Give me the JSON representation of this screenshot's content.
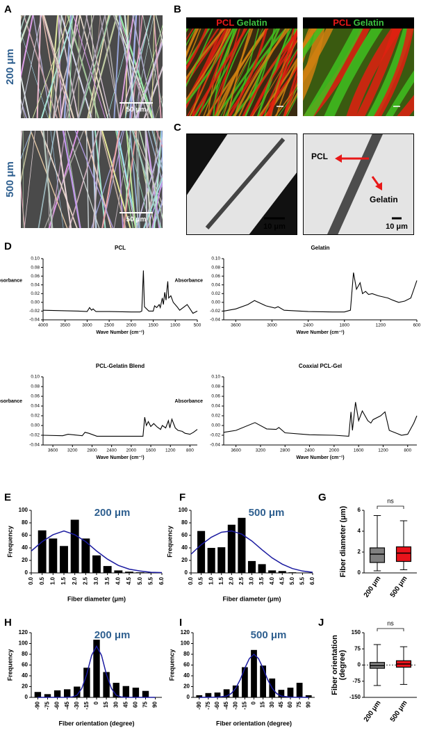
{
  "panel_labels": [
    "A",
    "B",
    "C",
    "D",
    "E",
    "F",
    "G",
    "H",
    "I",
    "J"
  ],
  "sem": {
    "rows": [
      "200 μm",
      "500 μm"
    ],
    "scale_bar": "50 μm"
  },
  "fluorescence": {
    "channels": [
      "PCL",
      "Gelatin"
    ]
  },
  "tem": {
    "scale_bar": "10 μm",
    "arrows": [
      "PCL",
      "Gelatin"
    ]
  },
  "chart_data": [
    {
      "type": "line",
      "title": "PCL",
      "xlabel": "Wave Number (cm⁻¹)",
      "ylabel": "Absorbance",
      "color": "#000000",
      "xlim": [
        4000,
        500
      ],
      "xticks": [
        4000,
        3500,
        3000,
        2500,
        2000,
        1500,
        1000,
        500
      ],
      "ylim": [
        -0.04,
        0.1
      ],
      "yticks": [
        -0.04,
        -0.02,
        {
          "value": 0,
          "label": "0.00"
        },
        0.02,
        0.04,
        0.06,
        0.08,
        {
          "value": 0.1,
          "label": "0.10"
        }
      ],
      "x": [
        4000,
        3600,
        3200,
        3000,
        2945,
        2900,
        2865,
        2800,
        2500,
        2000,
        1800,
        1760,
        1724,
        1700,
        1600,
        1500,
        1470,
        1420,
        1365,
        1340,
        1295,
        1270,
        1240,
        1210,
        1190,
        1170,
        1150,
        1100,
        1045,
        960,
        900,
        730,
        600,
        500
      ],
      "values": [
        -0.018,
        -0.019,
        -0.02,
        -0.021,
        -0.012,
        -0.018,
        -0.015,
        -0.021,
        -0.021,
        -0.022,
        -0.022,
        -0.02,
        0.073,
        -0.01,
        -0.02,
        -0.02,
        -0.008,
        -0.012,
        -0.005,
        -0.012,
        0.01,
        -0.005,
        0.023,
        0.005,
        0.028,
        0.048,
        0.01,
        0.015,
        0.0,
        -0.01,
        -0.018,
        -0.005,
        -0.025,
        -0.02
      ]
    },
    {
      "type": "line",
      "title": "Gelatin",
      "xlabel": "Wave Number (cm⁻¹)",
      "ylabel": "Absorbance",
      "color": "#000000",
      "xlim": [
        3800,
        600
      ],
      "xticks": [
        3600,
        3000,
        2400,
        1800,
        1200,
        600
      ],
      "ylim": [
        -0.04,
        0.1
      ],
      "yticks": [
        -0.04,
        -0.02,
        {
          "value": 0,
          "label": "0.00"
        },
        0.02,
        0.04,
        0.06,
        0.08,
        {
          "value": 0.1,
          "label": "0.10"
        }
      ],
      "x": [
        3800,
        3600,
        3400,
        3290,
        3100,
        2950,
        2900,
        2800,
        2400,
        2000,
        1800,
        1700,
        1650,
        1600,
        1540,
        1500,
        1450,
        1400,
        1340,
        1240,
        1080,
        1000,
        900,
        800,
        700,
        650,
        600
      ],
      "values": [
        -0.02,
        -0.015,
        -0.005,
        0.004,
        -0.008,
        -0.013,
        -0.01,
        -0.018,
        -0.021,
        -0.022,
        -0.022,
        -0.018,
        0.068,
        0.03,
        0.045,
        0.02,
        0.025,
        0.018,
        0.02,
        0.015,
        0.01,
        0.005,
        0.0,
        0.003,
        0.01,
        0.03,
        0.05
      ]
    },
    {
      "type": "line",
      "title": "PCL-Gelatin Blend",
      "xlabel": "Wave Number (cm⁻¹)",
      "ylabel": "Absorbance",
      "color": "#000000",
      "xlim": [
        3800,
        650
      ],
      "xticks": [
        3600,
        3200,
        2800,
        2400,
        2000,
        1600,
        1200,
        800
      ],
      "ylim": [
        -0.04,
        0.1
      ],
      "yticks": [
        -0.04,
        -0.02,
        {
          "value": 0,
          "label": "0.00"
        },
        0.02,
        0.04,
        0.06,
        0.08,
        {
          "value": 0.1,
          "label": "0.10"
        }
      ],
      "x": [
        3800,
        3400,
        3290,
        3000,
        2945,
        2865,
        2700,
        2000,
        1760,
        1724,
        1690,
        1650,
        1600,
        1540,
        1470,
        1400,
        1365,
        1295,
        1240,
        1210,
        1170,
        1100,
        1045,
        960,
        900,
        800,
        730,
        650
      ],
      "values": [
        -0.02,
        -0.021,
        -0.018,
        -0.021,
        -0.014,
        -0.016,
        -0.022,
        -0.022,
        -0.022,
        0.017,
        0.0,
        0.008,
        -0.002,
        0.004,
        -0.003,
        -0.008,
        0.0,
        -0.005,
        0.01,
        -0.005,
        0.013,
        -0.005,
        -0.01,
        -0.012,
        -0.016,
        -0.018,
        -0.014,
        -0.008
      ]
    },
    {
      "type": "line",
      "title": "Coaxial PCL-Gel",
      "xlabel": "Wave Number (cm⁻¹)",
      "ylabel": "Absorbance",
      "color": "#000000",
      "xlim": [
        3800,
        650
      ],
      "xticks": [
        3600,
        3200,
        2800,
        2400,
        2000,
        1600,
        1200,
        800
      ],
      "ylim": [
        -0.04,
        0.1
      ],
      "yticks": [
        -0.04,
        -0.02,
        {
          "value": 0,
          "label": "0.00"
        },
        0.02,
        0.04,
        0.06,
        0.08,
        {
          "value": 0.1,
          "label": "0.10"
        }
      ],
      "x": [
        3800,
        3600,
        3290,
        3100,
        2945,
        2900,
        2800,
        2400,
        2000,
        1760,
        1724,
        1700,
        1650,
        1600,
        1540,
        1450,
        1400,
        1365,
        1240,
        1170,
        1100,
        1000,
        900,
        800,
        700,
        650
      ],
      "values": [
        -0.014,
        -0.01,
        0.006,
        -0.007,
        -0.008,
        -0.004,
        -0.015,
        -0.019,
        -0.02,
        -0.022,
        0.028,
        -0.01,
        0.048,
        0.01,
        0.03,
        0.01,
        0.005,
        0.012,
        0.02,
        0.028,
        -0.01,
        -0.015,
        -0.02,
        -0.018,
        0.005,
        0.02
      ]
    },
    {
      "type": "bar",
      "title": "200 μm",
      "xlabel": "Fiber diameter (μm)",
      "ylabel": "Frequency",
      "color": "#000000",
      "xlim": [
        0,
        6
      ],
      "xticks": [
        {
          "value": 0,
          "label": "0.0"
        },
        0.5,
        {
          "value": 1,
          "label": "1.0"
        },
        1.5,
        {
          "value": 2,
          "label": "2.0"
        },
        2.5,
        {
          "value": 3,
          "label": "3.0"
        },
        3.5,
        {
          "value": 4,
          "label": "4.0"
        },
        4.5,
        {
          "value": 5,
          "label": "5.0"
        },
        5.5,
        {
          "value": 6,
          "label": "6.0"
        }
      ],
      "ylim": [
        0,
        100
      ],
      "yticks": [
        0,
        20,
        40,
        60,
        80,
        100
      ],
      "x": [
        0.5,
        1,
        1.5,
        2,
        2.5,
        3,
        3.5,
        4,
        4.5,
        5
      ],
      "values": [
        68,
        55,
        43,
        85,
        55,
        28,
        11,
        4,
        2,
        1
      ],
      "fit": {
        "color": "#1a1aa0",
        "x": [
          0,
          0.5,
          1,
          1.5,
          2,
          2.5,
          3,
          3.5,
          4,
          4.5,
          5,
          5.5,
          6
        ],
        "values": [
          35,
          50,
          61,
          67,
          61,
          50,
          35,
          22,
          12,
          6,
          3,
          1,
          0.5
        ]
      }
    },
    {
      "type": "bar",
      "title": "500 μm",
      "xlabel": "Fiber diameter (μm)",
      "ylabel": "Frequency",
      "color": "#000000",
      "xlim": [
        0,
        6
      ],
      "xticks": [
        {
          "value": 0,
          "label": "0.0"
        },
        0.5,
        {
          "value": 1,
          "label": "1.0"
        },
        1.5,
        {
          "value": 2,
          "label": "2.0"
        },
        2.5,
        {
          "value": 3,
          "label": "3.0"
        },
        3.5,
        {
          "value": 4,
          "label": "4.0"
        },
        4.5,
        {
          "value": 5,
          "label": "5.0"
        },
        5.5,
        {
          "value": 6,
          "label": "6.0"
        }
      ],
      "ylim": [
        0,
        100
      ],
      "yticks": [
        0,
        20,
        40,
        60,
        80,
        100
      ],
      "x": [
        0.5,
        1,
        1.5,
        2,
        2.5,
        3,
        3.5,
        4,
        4.5,
        5
      ],
      "values": [
        67,
        40,
        41,
        77,
        88,
        19,
        14,
        4,
        3,
        1
      ],
      "fit": {
        "color": "#1a1aa0",
        "x": [
          0,
          0.5,
          1,
          1.5,
          2,
          2.5,
          3,
          3.5,
          4,
          4.5,
          5,
          5.5,
          6
        ],
        "values": [
          30,
          45,
          57,
          65,
          67,
          62,
          51,
          37,
          24,
          14,
          7,
          3,
          1
        ]
      }
    },
    {
      "type": "box",
      "ylabel": "Fiber diameter (μm)",
      "annotation": "ns",
      "categories": [
        "200 μm",
        "500 μm"
      ],
      "ylim": [
        0,
        6
      ],
      "yticks": [
        0,
        2,
        4,
        6
      ],
      "boxes": [
        {
          "min": 0.2,
          "q1": 1.0,
          "median": 1.8,
          "q3": 2.4,
          "max": 5.5,
          "color": "#808080"
        },
        {
          "min": 0.3,
          "q1": 1.1,
          "median": 1.9,
          "q3": 2.5,
          "max": 5.0,
          "color": "#e8131b"
        }
      ]
    },
    {
      "type": "bar",
      "title": "200 μm",
      "xlabel": "Fiber orientation (degree)",
      "ylabel": "Frequency",
      "color": "#000000",
      "xlim": [
        -100,
        100
      ],
      "xticks": [
        -90,
        -75,
        -60,
        -45,
        -30,
        -15,
        0,
        15,
        30,
        45,
        60,
        75,
        90
      ],
      "ylim": [
        0,
        120
      ],
      "yticks": [
        0,
        20,
        40,
        60,
        80,
        100,
        120
      ],
      "x": [
        -90,
        -75,
        -60,
        -45,
        -30,
        -15,
        0,
        15,
        30,
        45,
        60,
        75
      ],
      "values": [
        10,
        6,
        13,
        15,
        20,
        55,
        107,
        47,
        27,
        21,
        18,
        12
      ],
      "fit": {
        "color": "#1a1aa0",
        "x": [
          -90,
          -45,
          -37.5,
          -30,
          -22.5,
          -15,
          -7.5,
          0,
          7.5,
          15,
          22.5,
          30,
          37.5,
          45,
          90
        ],
        "values": [
          0,
          0.1,
          0.8,
          4,
          17,
          43,
          78,
          95,
          78,
          43,
          17,
          4,
          0.8,
          0.1,
          0
        ]
      }
    },
    {
      "type": "bar",
      "title": "500 μm",
      "xlabel": "Fiber orientation (degree)",
      "ylabel": "Frequency",
      "color": "#000000",
      "xlim": [
        -100,
        100
      ],
      "xticks": [
        -90,
        -75,
        -60,
        -45,
        -30,
        -15,
        0,
        15,
        30,
        45,
        60,
        75,
        90
      ],
      "ylim": [
        0,
        120
      ],
      "yticks": [
        0,
        20,
        40,
        60,
        80,
        100,
        120
      ],
      "x": [
        -90,
        -75,
        -60,
        -45,
        -30,
        -15,
        0,
        15,
        30,
        45,
        60,
        75,
        90
      ],
      "values": [
        4,
        8,
        9,
        15,
        22,
        56,
        88,
        59,
        35,
        14,
        18,
        27,
        4
      ],
      "fit": {
        "color": "#1a1aa0",
        "x": [
          -90,
          -60,
          -45,
          -37.5,
          -30,
          -22.5,
          -15,
          -7.5,
          0,
          7.5,
          15,
          22.5,
          30,
          37.5,
          45,
          60,
          90
        ],
        "values": [
          0,
          0.2,
          2.4,
          7,
          17,
          33,
          54,
          72,
          80,
          72,
          54,
          33,
          17,
          7,
          2.4,
          0.2,
          0
        ]
      }
    },
    {
      "type": "box",
      "ylabel": [
        "Fiber orientation",
        "(degree)"
      ],
      "annotation": "ns",
      "categories": [
        "200 μm",
        "500 μm"
      ],
      "ylim": [
        -150,
        150
      ],
      "yticks": [
        -150,
        -75,
        0,
        75,
        150
      ],
      "hline": 0,
      "boxes": [
        {
          "min": -95,
          "q1": -15,
          "median": -3,
          "q3": 12,
          "max": 95,
          "color": "#808080"
        },
        {
          "min": -90,
          "q1": -10,
          "median": 5,
          "q3": 20,
          "max": 85,
          "color": "#e8131b"
        }
      ]
    }
  ]
}
